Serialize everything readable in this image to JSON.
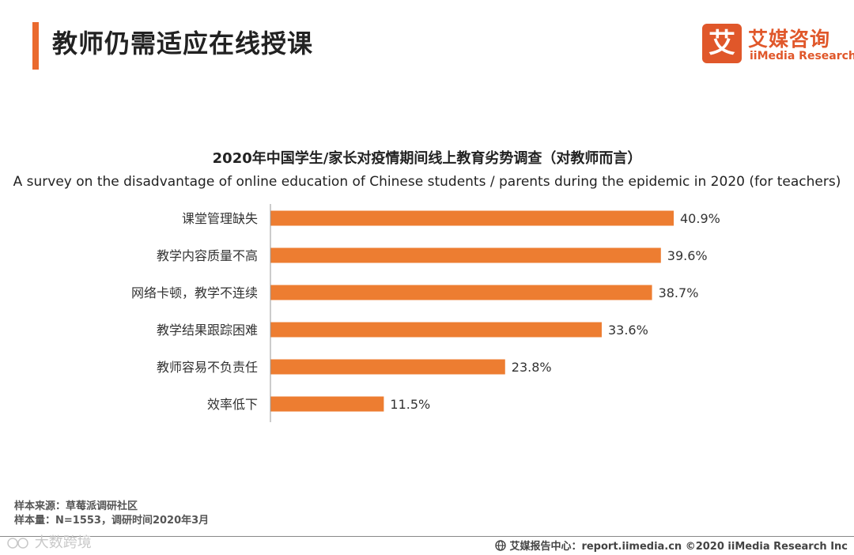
{
  "header": {
    "title": "教师仍需适应在线授课",
    "logo_mark": "艾",
    "logo_cn": "艾媒咨询",
    "logo_en": "iiMedia Research"
  },
  "colors": {
    "accent": "#ea6a2e",
    "bar": "#ed7d31",
    "logo": "#e0572a"
  },
  "chart_data": {
    "type": "bar",
    "orientation": "horizontal",
    "title": "2020年中国学生/家长对疫情期间线上教育劣势调查（对教师而言）",
    "subtitle": "A survey on the disadvantage of online education of Chinese students / parents during the epidemic in 2020 (for teachers)",
    "categories": [
      "课堂管理缺失",
      "教学内容质量不高",
      "网络卡顿，教学不连续",
      "教学结果跟踪困难",
      "教师容易不负责任",
      "效率低下"
    ],
    "values": [
      40.9,
      39.6,
      38.7,
      33.6,
      23.8,
      11.5
    ],
    "value_suffix": "%",
    "xlim": [
      0,
      40.9
    ],
    "grid": false,
    "legend": "none"
  },
  "footer": {
    "source": "样本来源：草莓派调研社区",
    "sample": "样本量：N=1553，调研时间2020年3月",
    "watermark": "大数跨境",
    "credit": "艾媒报告中心：report.iimedia.cn  ©2020  iiMedia Research  Inc"
  }
}
